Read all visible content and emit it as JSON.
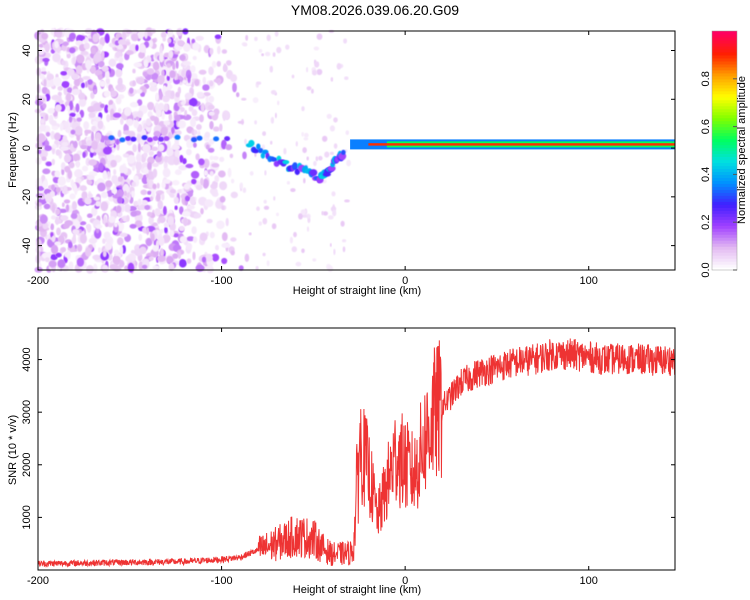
{
  "title": "YM08.2026.039.06.20.G09",
  "chart_data": [
    {
      "type": "heatmap",
      "title": "YM08.2026.039.06.20.G09",
      "xlabel": "Height of straight line (km)",
      "ylabel": "Frequency (Hz)",
      "xlim": [
        -200,
        147
      ],
      "ylim": [
        -50,
        48
      ],
      "x_ticks": [
        -200,
        -100,
        0,
        100
      ],
      "y_ticks": [
        -40,
        -20,
        0,
        20,
        40
      ],
      "colorbar": {
        "label": "Normalized spectral amplitude",
        "range": [
          0,
          1
        ],
        "ticks": [
          0.0,
          0.2,
          0.4,
          0.6,
          0.8
        ],
        "colors": [
          "#ffffff",
          "#e2b8f2",
          "#a040ff",
          "#4020ff",
          "#0090ff",
          "#00e0e0",
          "#00ff60",
          "#80ff00",
          "#ffff00",
          "#ffa000",
          "#ff2000",
          "#ff0060"
        ]
      },
      "features": [
        {
          "name": "noise region",
          "x_range": [
            -200,
            -85
          ],
          "y_range": [
            -50,
            48
          ],
          "amplitude": 0.15
        },
        {
          "name": "low-frequency tone",
          "x_range": [
            -160,
            -95
          ],
          "y": 4,
          "amplitude": 0.3
        },
        {
          "name": "descending trace",
          "x": [
            -85,
            -75,
            -65,
            -55,
            -47,
            -42,
            -38,
            -33
          ],
          "y": [
            2,
            -3,
            -7,
            -9,
            -12,
            -9,
            -5,
            -2
          ],
          "amplitude": 0.35
        },
        {
          "name": "carrier",
          "x_range": [
            -30,
            147
          ],
          "y": 1.5,
          "amplitude": 0.9
        }
      ]
    },
    {
      "type": "line",
      "xlabel": "Height of straight line (km)",
      "ylabel": "SNR (10 * v/v)",
      "xlim": [
        -200,
        147
      ],
      "ylim": [
        0,
        4600
      ],
      "x_ticks": [
        -200,
        -100,
        0,
        100
      ],
      "y_ticks": [
        1000,
        2000,
        3000,
        4000
      ],
      "series": [
        {
          "name": "SNR",
          "color": "#ee3333",
          "x": [
            -200,
            -180,
            -160,
            -140,
            -120,
            -100,
            -90,
            -80,
            -70,
            -60,
            -50,
            -45,
            -40,
            -30,
            -28,
            -25,
            -20,
            -15,
            -10,
            -5,
            0,
            5,
            10,
            15,
            20,
            25,
            30,
            40,
            50,
            60,
            70,
            80,
            90,
            100,
            110,
            120,
            130,
            140,
            147
          ],
          "y": [
            120,
            130,
            140,
            150,
            160,
            200,
            240,
            380,
            500,
            650,
            600,
            420,
            300,
            320,
            450,
            2400,
            1900,
            1000,
            1600,
            2200,
            2000,
            1800,
            2400,
            2900,
            3100,
            3300,
            3550,
            3750,
            3850,
            3950,
            4000,
            4100,
            4100,
            4050,
            4000,
            4020,
            4000,
            3980,
            4000
          ]
        }
      ]
    }
  ]
}
